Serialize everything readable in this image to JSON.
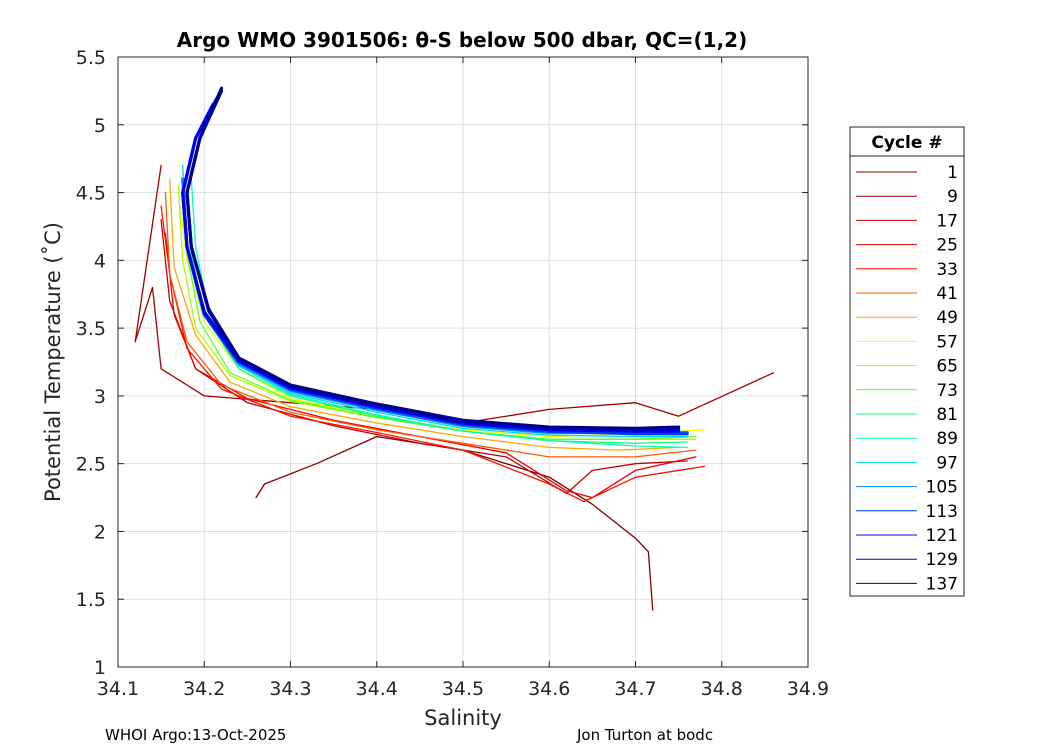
{
  "chart_data": {
    "type": "line",
    "title": "Argo WMO 3901506: θ-S below 500 dbar,  QC=(1,2)",
    "xlabel": "Salinity",
    "ylabel": "Potential Temperature (˚C)",
    "xlim": [
      34.1,
      34.9
    ],
    "ylim": [
      1,
      5.5
    ],
    "xticks": [
      "34.1",
      "34.2",
      "34.3",
      "34.4",
      "34.5",
      "34.6",
      "34.7",
      "34.8",
      "34.9"
    ],
    "yticks": [
      "1",
      "1.5",
      "2",
      "2.5",
      "3",
      "3.5",
      "4",
      "4.5",
      "5",
      "5.5"
    ],
    "grid": true,
    "legend_title": "Cycle #",
    "legend_position": "outside-right",
    "series": [
      {
        "name": "1",
        "color": "#7f0000",
        "x": [
          34.72,
          34.715,
          34.7,
          34.65,
          34.6,
          34.5,
          34.4,
          34.33,
          34.27,
          34.26
        ],
        "y": [
          1.42,
          1.85,
          1.95,
          2.2,
          2.4,
          2.6,
          2.7,
          2.5,
          2.35,
          2.25
        ]
      },
      {
        "name": "9",
        "color": "#a30000",
        "x": [
          34.86,
          34.75,
          34.7,
          34.6,
          34.5,
          34.4,
          34.3,
          34.2,
          34.15,
          34.14,
          34.12,
          34.15
        ],
        "y": [
          3.17,
          2.85,
          2.95,
          2.9,
          2.8,
          2.9,
          2.95,
          3.0,
          3.2,
          3.8,
          3.4,
          4.7
        ]
      },
      {
        "name": "17",
        "color": "#c60000",
        "x": [
          34.76,
          34.7,
          34.65,
          34.62,
          34.55,
          34.45,
          34.35,
          34.25,
          34.19,
          34.16,
          34.15
        ],
        "y": [
          2.52,
          2.5,
          2.45,
          2.28,
          2.55,
          2.65,
          2.78,
          2.95,
          3.2,
          3.7,
          4.3
        ]
      },
      {
        "name": "25",
        "color": "#ea0000",
        "x": [
          34.77,
          34.7,
          34.65,
          34.62,
          34.55,
          34.45,
          34.35,
          34.25,
          34.19,
          34.165,
          34.155
        ],
        "y": [
          2.55,
          2.45,
          2.25,
          2.3,
          2.58,
          2.7,
          2.82,
          2.98,
          3.2,
          3.6,
          4.2
        ]
      },
      {
        "name": "33",
        "color": "#ff1000",
        "x": [
          34.78,
          34.7,
          34.64,
          34.6,
          34.5,
          34.4,
          34.3,
          34.22,
          34.18,
          34.16,
          34.15
        ],
        "y": [
          2.48,
          2.4,
          2.22,
          2.35,
          2.6,
          2.73,
          2.85,
          3.05,
          3.35,
          3.9,
          4.4
        ]
      },
      {
        "name": "41",
        "color": "#ff5c00",
        "x": [
          34.77,
          34.7,
          34.6,
          34.5,
          34.4,
          34.3,
          34.22,
          34.18,
          34.16,
          34.155
        ],
        "y": [
          2.6,
          2.55,
          2.55,
          2.65,
          2.75,
          2.88,
          3.08,
          3.4,
          3.9,
          4.5
        ]
      },
      {
        "name": "49",
        "color": "#ffa800",
        "x": [
          34.75,
          34.68,
          34.6,
          34.5,
          34.4,
          34.3,
          34.23,
          34.19,
          34.165,
          34.16
        ],
        "y": [
          2.62,
          2.6,
          2.62,
          2.7,
          2.8,
          2.92,
          3.1,
          3.45,
          3.95,
          4.6
        ]
      },
      {
        "name": "57",
        "color": "#f0ff00",
        "x": [
          34.78,
          34.7,
          34.6,
          34.5,
          34.4,
          34.3,
          34.24,
          34.2,
          34.18,
          34.17
        ],
        "y": [
          2.75,
          2.72,
          2.7,
          2.75,
          2.85,
          2.98,
          3.2,
          3.55,
          4.0,
          4.5
        ]
      },
      {
        "name": "65",
        "color": "#a8ff00",
        "x": [
          34.77,
          34.7,
          34.6,
          34.5,
          34.4,
          34.3,
          34.23,
          34.19,
          34.175,
          34.17
        ],
        "y": [
          2.68,
          2.68,
          2.68,
          2.74,
          2.84,
          2.96,
          3.15,
          3.5,
          4.0,
          4.55
        ]
      },
      {
        "name": "73",
        "color": "#5cff24",
        "x": [
          34.77,
          34.7,
          34.6,
          34.5,
          34.4,
          34.3,
          34.23,
          34.195,
          34.18,
          34.175
        ],
        "y": [
          2.7,
          2.68,
          2.68,
          2.74,
          2.84,
          2.97,
          3.17,
          3.55,
          4.05,
          4.55
        ]
      },
      {
        "name": "81",
        "color": "#14ff70",
        "x": [
          34.76,
          34.7,
          34.6,
          34.5,
          34.4,
          34.3,
          34.24,
          34.2,
          34.185,
          34.18
        ],
        "y": [
          2.66,
          2.65,
          2.67,
          2.74,
          2.85,
          3.0,
          3.2,
          3.6,
          4.05,
          4.55
        ]
      },
      {
        "name": "89",
        "color": "#00ffbc",
        "x": [
          34.76,
          34.7,
          34.6,
          34.5,
          34.4,
          34.3,
          34.24,
          34.205,
          34.19,
          34.185
        ],
        "y": [
          2.62,
          2.63,
          2.67,
          2.74,
          2.86,
          3.01,
          3.22,
          3.62,
          4.1,
          4.6
        ]
      },
      {
        "name": "97",
        "color": "#00d6ff",
        "x": [
          34.76,
          34.7,
          34.6,
          34.5,
          34.4,
          34.3,
          34.24,
          34.2,
          34.18,
          34.175
        ],
        "y": [
          2.7,
          2.7,
          2.71,
          2.76,
          2.88,
          3.02,
          3.22,
          3.6,
          4.1,
          4.7
        ]
      },
      {
        "name": "105",
        "color": "#008aff",
        "x": [
          34.76,
          34.7,
          34.6,
          34.5,
          34.4,
          34.3,
          34.24,
          34.2,
          34.18,
          34.175
        ],
        "y": [
          2.73,
          2.73,
          2.73,
          2.78,
          2.9,
          3.04,
          3.24,
          3.6,
          4.1,
          4.6
        ]
      },
      {
        "name": "113",
        "color": "#003eff",
        "x": [
          34.76,
          34.7,
          34.6,
          34.5,
          34.4,
          34.3,
          34.24,
          34.2,
          34.18,
          34.175,
          34.19,
          34.21
        ],
        "y": [
          2.72,
          2.72,
          2.74,
          2.79,
          2.91,
          3.05,
          3.25,
          3.6,
          4.1,
          4.5,
          4.9,
          5.15
        ]
      },
      {
        "name": "121",
        "color": "#0000f2",
        "x": [
          34.75,
          34.7,
          34.6,
          34.5,
          34.4,
          34.3,
          34.24,
          34.2,
          34.18,
          34.175,
          34.19,
          34.215
        ],
        "y": [
          2.74,
          2.74,
          2.75,
          2.8,
          2.92,
          3.06,
          3.26,
          3.62,
          4.1,
          4.5,
          4.9,
          5.2
        ]
      },
      {
        "name": "129",
        "color": "#0000c2",
        "x": [
          34.75,
          34.7,
          34.6,
          34.5,
          34.4,
          34.3,
          34.24,
          34.205,
          34.185,
          34.18,
          34.195,
          34.22
        ],
        "y": [
          2.76,
          2.75,
          2.76,
          2.81,
          2.93,
          3.07,
          3.27,
          3.63,
          4.1,
          4.5,
          4.9,
          5.25
        ]
      },
      {
        "name": "137",
        "color": "#000090",
        "x": [
          34.75,
          34.7,
          34.6,
          34.5,
          34.4,
          34.3,
          34.24,
          34.205,
          34.185,
          34.18,
          34.195,
          34.22
        ],
        "y": [
          2.77,
          2.76,
          2.77,
          2.82,
          2.94,
          3.08,
          3.28,
          3.64,
          4.1,
          4.5,
          4.9,
          5.27
        ]
      }
    ]
  },
  "footer": {
    "left": "WHOI Argo:13-Oct-2025",
    "right": "Jon Turton at bodc"
  }
}
